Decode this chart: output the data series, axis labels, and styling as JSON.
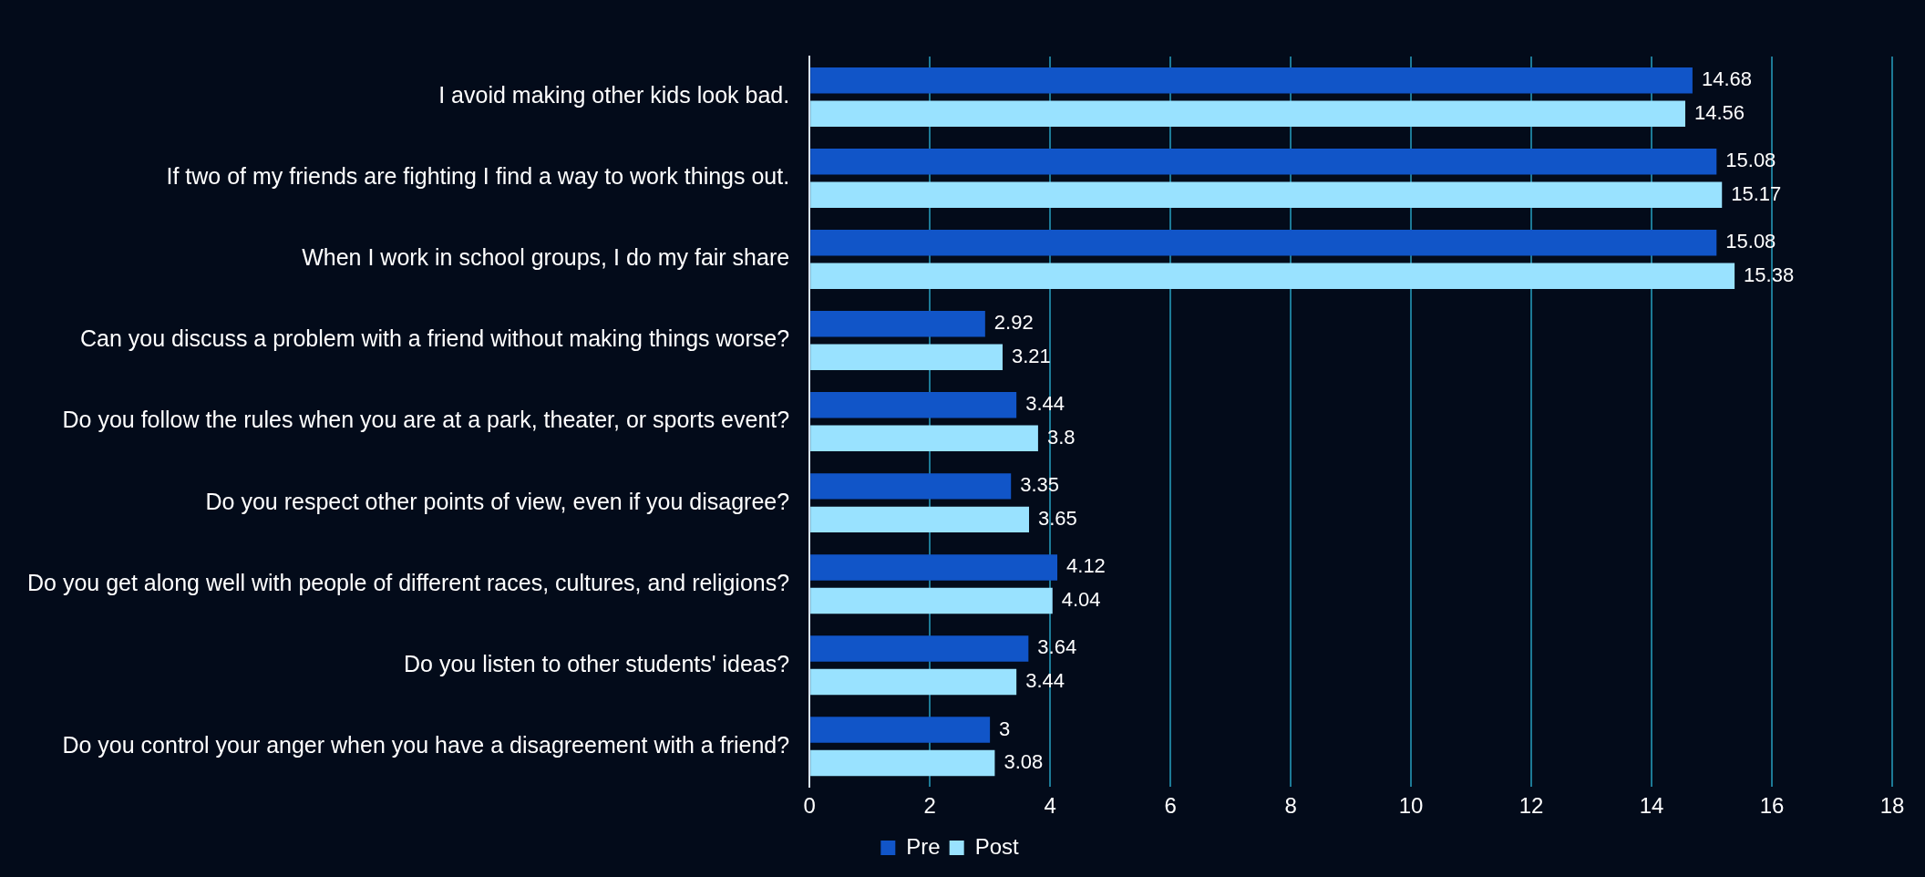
{
  "chart_data": {
    "type": "bar",
    "orientation": "horizontal",
    "categories": [
      "I avoid making other kids look bad.",
      "If two of my friends are fighting I find a way to work things out.",
      "When I work in school groups, I do my fair share",
      "Can you discuss a problem with a friend without making things worse?",
      "Do you follow the rules when you are at a park, theater, or sports event?",
      "Do you respect other points of view, even if you disagree?",
      "Do you get along well with people of different races, cultures, and religions?",
      "Do you listen to other students' ideas?",
      "Do you control your anger when you have a disagreement with a friend?"
    ],
    "series": [
      {
        "name": "Pre",
        "color": "#1155c8",
        "values": [
          14.68,
          15.08,
          15.08,
          2.92,
          3.44,
          3.35,
          4.12,
          3.64,
          3
        ]
      },
      {
        "name": "Post",
        "color": "#99e2ff",
        "values": [
          14.56,
          15.17,
          15.38,
          3.21,
          3.8,
          3.65,
          4.04,
          3.44,
          3.08
        ]
      }
    ],
    "xlim": [
      0,
      18
    ],
    "xticks": [
      0,
      2,
      4,
      6,
      8,
      10,
      12,
      14,
      16,
      18
    ],
    "grid": "x",
    "legend": "bottom",
    "data_labels": true
  }
}
